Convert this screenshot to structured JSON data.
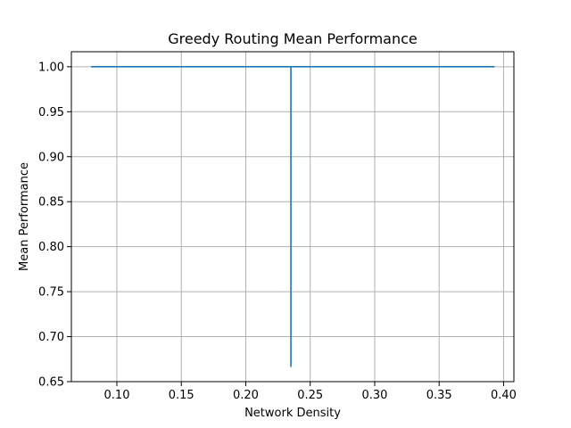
{
  "chart_data": {
    "type": "line",
    "title": "Greedy Routing Mean Performance",
    "xlabel": "Network Density",
    "ylabel": "Mean Performance",
    "xlim": [
      0.0647,
      0.408
    ],
    "ylim": [
      0.65,
      1.0167
    ],
    "xticks": [
      0.1,
      0.15,
      0.2,
      0.25,
      0.3,
      0.35,
      0.4
    ],
    "xtick_labels": [
      "0.10",
      "0.15",
      "0.20",
      "0.25",
      "0.30",
      "0.35",
      "0.40"
    ],
    "yticks": [
      0.65,
      0.7,
      0.75,
      0.8,
      0.85,
      0.9,
      0.95,
      1.0
    ],
    "ytick_labels": [
      "0.65",
      "0.70",
      "0.75",
      "0.80",
      "0.85",
      "0.90",
      "0.95",
      "1.00"
    ],
    "grid": true,
    "legend": "none",
    "series": [
      {
        "color": "#1f77b4",
        "x": [
          0.08,
          0.1,
          0.12,
          0.14,
          0.16,
          0.18,
          0.2,
          0.22,
          0.235,
          0.235,
          0.235,
          0.26,
          0.28,
          0.3,
          0.32,
          0.34,
          0.36,
          0.38,
          0.393
        ],
        "y": [
          1.0,
          1.0,
          1.0,
          1.0,
          1.0,
          1.0,
          1.0,
          1.0,
          1.0,
          0.667,
          1.0,
          1.0,
          1.0,
          1.0,
          1.0,
          1.0,
          1.0,
          1.0,
          1.0
        ]
      }
    ]
  }
}
